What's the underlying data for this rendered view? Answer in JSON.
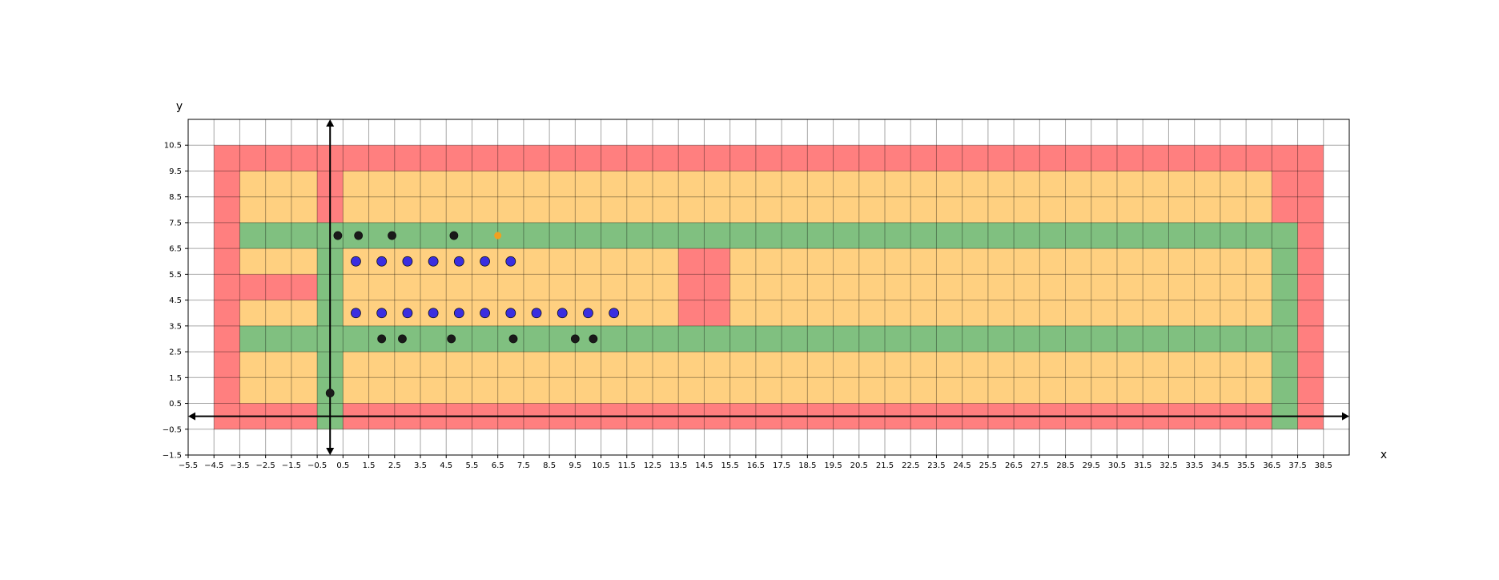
{
  "chart_data": {
    "type": "scatter",
    "title": "",
    "xlabel": "x",
    "ylabel": "y",
    "xlim": [
      -5.5,
      39.5
    ],
    "ylim": [
      -1.5,
      11.5
    ],
    "xticks": [
      -5.5,
      -4.5,
      -3.5,
      -2.5,
      -1.5,
      -0.5,
      0.5,
      1.5,
      2.5,
      3.5,
      4.5,
      5.5,
      6.5,
      7.5,
      8.5,
      9.5,
      10.5,
      11.5,
      12.5,
      13.5,
      14.5,
      15.5,
      16.5,
      17.5,
      18.5,
      19.5,
      20.5,
      21.5,
      22.5,
      23.5,
      24.5,
      25.5,
      26.5,
      27.5,
      28.5,
      29.5,
      30.5,
      31.5,
      32.5,
      33.5,
      34.5,
      35.5,
      36.5,
      37.5,
      38.5
    ],
    "yticks": [
      -1.5,
      -0.5,
      0.5,
      1.5,
      2.5,
      3.5,
      4.5,
      5.5,
      6.5,
      7.5,
      8.5,
      9.5,
      10.5
    ],
    "grid": true,
    "cell_colors": {
      "wall": "#ff7f7f",
      "floor": "#ffd080",
      "lane": "#80c080"
    },
    "marker_colors": {
      "blue": "#3a2ee0",
      "black": "#1a1a1a",
      "orange": "#f0a020"
    },
    "regions": [
      {
        "kind": "wall",
        "x": [
          -4.5,
          38.5
        ],
        "y": [
          -0.5,
          10.5
        ]
      },
      {
        "kind": "floor",
        "x": [
          -3.5,
          36.5
        ],
        "y": [
          0.5,
          9.5
        ]
      },
      {
        "kind": "wall",
        "x": [
          -0.5,
          0.5
        ],
        "y": [
          7.5,
          9.5
        ]
      },
      {
        "kind": "wall",
        "x": [
          -3.5,
          -0.5
        ],
        "y": [
          4.5,
          5.5
        ]
      },
      {
        "kind": "wall",
        "x": [
          13.5,
          15.5
        ],
        "y": [
          3.5,
          6.5
        ]
      },
      {
        "kind": "lane",
        "x": [
          -3.5,
          37.5
        ],
        "y": [
          6.5,
          7.5
        ]
      },
      {
        "kind": "lane",
        "x": [
          -3.5,
          36.5
        ],
        "y": [
          2.5,
          3.5
        ]
      },
      {
        "kind": "lane",
        "x": [
          -0.5,
          0.5
        ],
        "y": [
          -0.5,
          7.5
        ]
      },
      {
        "kind": "lane",
        "x": [
          36.5,
          37.5
        ],
        "y": [
          -0.5,
          7.5
        ]
      }
    ],
    "series": [
      {
        "color": "blue",
        "x": [
          1,
          2,
          3,
          4,
          5,
          6,
          7,
          1,
          2,
          3,
          4,
          5,
          6,
          7,
          8,
          9,
          10,
          11
        ],
        "y": [
          6,
          6,
          6,
          6,
          6,
          6,
          6,
          4,
          4,
          4,
          4,
          4,
          4,
          4,
          4,
          4,
          4,
          4
        ]
      },
      {
        "color": "black",
        "x": [
          0.3,
          1.1,
          2.4,
          4.8,
          2,
          2.8,
          4.7,
          7.1,
          9.5,
          10.2,
          0
        ],
        "y": [
          7,
          7,
          7,
          7,
          3,
          3,
          3,
          3,
          3,
          3,
          0.9
        ]
      },
      {
        "color": "orange",
        "x": [
          6.5
        ],
        "y": [
          7
        ]
      }
    ]
  }
}
